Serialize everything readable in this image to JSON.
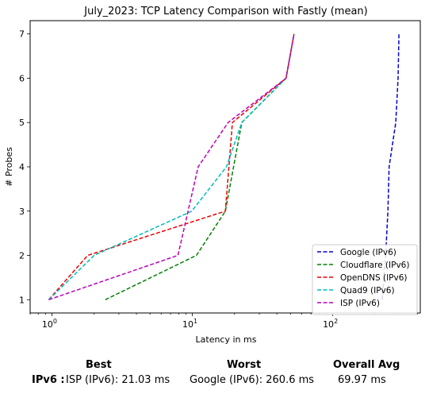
{
  "chart_data": {
    "type": "line",
    "title": "July_2023: TCP Latency Comparison with Fastly (mean)",
    "xlabel": "Latency in ms",
    "ylabel": "# Probes",
    "xscale": "log",
    "xlim": [
      0.7,
      420
    ],
    "ylim": [
      0.7,
      7.3
    ],
    "xticks": [
      {
        "value": 1,
        "label": "10^0",
        "base": "10",
        "exp": "0"
      },
      {
        "value": 10,
        "label": "10^1",
        "base": "10",
        "exp": "1"
      },
      {
        "value": 100,
        "label": "10^2",
        "base": "10",
        "exp": "2"
      }
    ],
    "yticks": [
      1,
      2,
      3,
      4,
      5,
      6,
      7
    ],
    "legend_position": "lower-right",
    "series": [
      {
        "name": "Google (IPv6)",
        "color": "#0000cc",
        "x": [
          225,
          238,
          247,
          252,
          281,
          292,
          296
        ],
        "y": [
          1,
          2,
          3,
          4,
          5,
          6,
          7
        ]
      },
      {
        "name": "Cloudflare (IPv6)",
        "color": "#008000",
        "x": [
          2.4,
          10.7,
          17.2,
          22.5,
          46.5,
          53.0
        ],
        "y": [
          1,
          2,
          3,
          5,
          6,
          7
        ]
      },
      {
        "name": "OpenDNS (IPv6)",
        "color": "#ee0000",
        "x": [
          0.95,
          1.8,
          17.2,
          19.3,
          46.5,
          53.0
        ],
        "y": [
          1,
          2,
          3,
          5,
          6,
          7
        ]
      },
      {
        "name": "Quad9 (IPv6)",
        "color": "#00bbbb",
        "x": [
          0.95,
          2.0,
          9.9,
          17.5,
          22.5,
          46.5,
          53.0
        ],
        "y": [
          1,
          2,
          3,
          4,
          5,
          6,
          7
        ]
      },
      {
        "name": "ISP (IPv6)",
        "color": "#bb00bb",
        "x": [
          0.95,
          7.9,
          11.0,
          18.0,
          46.5,
          53.0
        ],
        "y": [
          1,
          2,
          4,
          5,
          6,
          7
        ]
      }
    ]
  },
  "summary": {
    "best_header": "Best",
    "worst_header": "Worst",
    "avg_header": "Overall Avg",
    "row_label": "IPv6 :",
    "best_value": "ISP (IPv6): 21.03 ms",
    "worst_value": "Google (IPv6): 260.6 ms",
    "avg_value": "69.97 ms"
  }
}
